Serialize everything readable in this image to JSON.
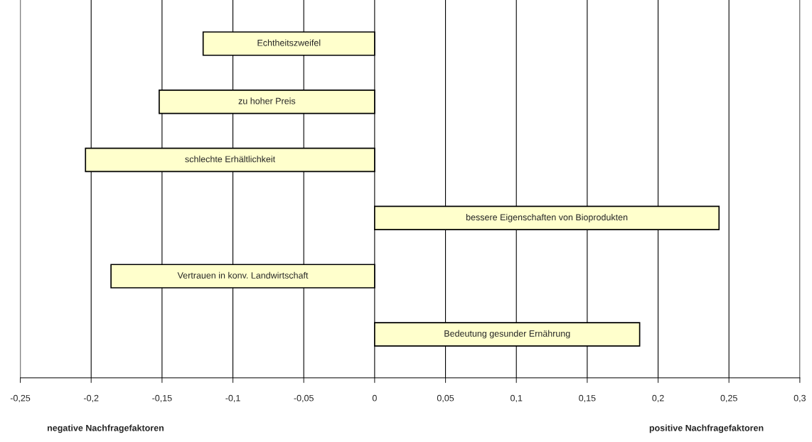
{
  "chart_data": {
    "type": "bar",
    "orientation": "horizontal",
    "categories": [
      "Echtheitszweifel",
      "zu hoher Preis",
      "schlechte Erhältlichkeit",
      "bessere Eigenschaften von Bioprodukten",
      "Vertrauen in konv. Landwirtschaft",
      "Bedeutung gesunder Ernährung"
    ],
    "values": [
      -0.121,
      -0.152,
      -0.204,
      0.243,
      -0.186,
      0.187
    ],
    "color": "#ffffcc",
    "xlim": [
      -0.25,
      0.3
    ],
    "xticks": [
      {
        "value": -0.25,
        "label": "-0,25"
      },
      {
        "value": -0.2,
        "label": "-0,2"
      },
      {
        "value": -0.15,
        "label": "-0,15"
      },
      {
        "value": -0.1,
        "label": "-0,1"
      },
      {
        "value": -0.05,
        "label": "-0,05"
      },
      0,
      {
        "value": 0.05,
        "label": "0,05"
      },
      {
        "value": 0.1,
        "label": "0,1"
      },
      {
        "value": 0.15,
        "label": "0,15"
      },
      {
        "value": 0.2,
        "label": "0,2"
      },
      {
        "value": 0.25,
        "label": "0,25"
      },
      {
        "value": 0.3,
        "label": "0,3"
      }
    ],
    "grid": "x",
    "tick_labels": "x",
    "legend": false,
    "annotations": [
      "negative Nachfragefaktoren",
      "positive Nachfragefaktoren"
    ]
  }
}
